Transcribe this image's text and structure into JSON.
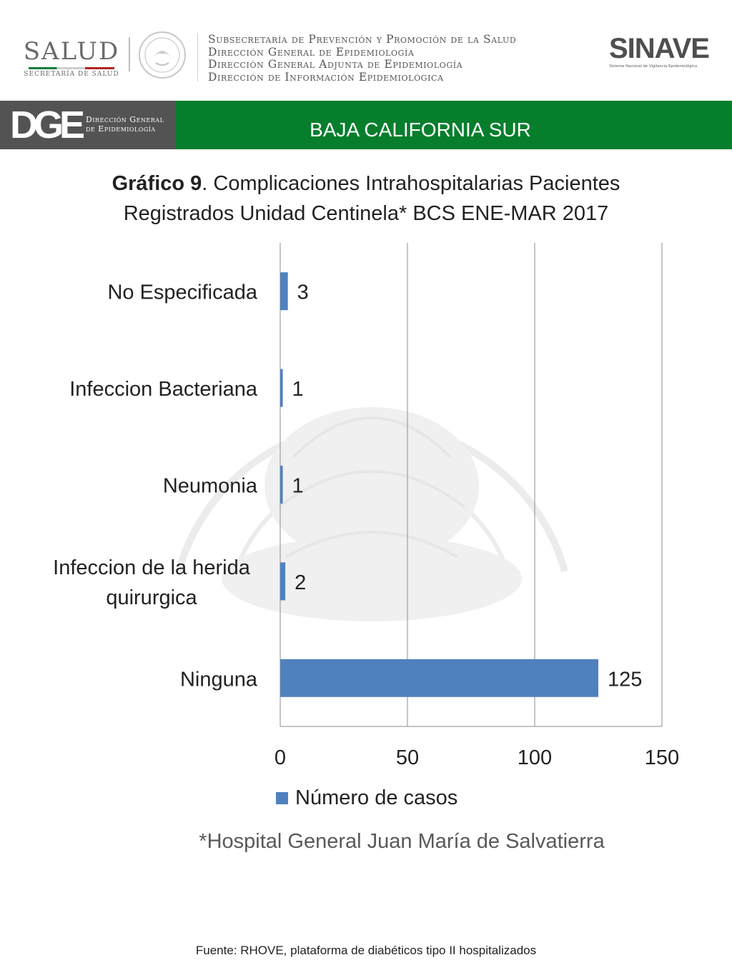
{
  "header": {
    "salud_logo": {
      "word": "SALUD",
      "sub": "SECRETARÍA DE SALUD"
    },
    "lines": [
      "Subsecretaría de Prevención y Promoción de la Salud",
      "Dirección General de Epidemiología",
      "Dirección General Adjunta de Epidemiología",
      "Dirección de Información Epidemiológica"
    ],
    "sinave_logo": {
      "word": "SINAVE",
      "sub": "Sistema Nacional de Vigilancia Epidemiológica"
    }
  },
  "banner": {
    "dge_mark": "DGE",
    "dge_line1": "Dirección General",
    "dge_line2": "de Epidemiología",
    "title": "BAJA CALIFORNIA SUR"
  },
  "title": {
    "prefix": "Gráfico 9",
    "text": ". Complicaciones Intrahospitalarias Pacientes",
    "line2": "Registrados Unidad Centinela* BCS  ENE-MAR 2017"
  },
  "chart_data": {
    "type": "bar",
    "orientation": "horizontal",
    "categories": [
      "No Especificada",
      "Infeccion Bacteriana",
      "Neumonia",
      "Infeccion de la herida quirurgica",
      "Ninguna"
    ],
    "category_lines": [
      [
        "No Especificada"
      ],
      [
        "Infeccion Bacteriana"
      ],
      [
        "Neumonia"
      ],
      [
        "Infeccion de la herida",
        "quirurgica"
      ],
      [
        "Ninguna"
      ]
    ],
    "series": [
      {
        "name": "Número de casos",
        "values": [
          3,
          1,
          1,
          2,
          125
        ]
      }
    ],
    "xlim": [
      0,
      150
    ],
    "xticks": [
      0,
      50,
      100,
      150
    ],
    "grid": true,
    "legend": "bottom",
    "bar_color": "#4f81bd"
  },
  "legend_label": "Número de casos",
  "footnote": "*Hospital General Juan María de Salvatierra",
  "source": "Fuente: RHOVE, plataforma de diabéticos tipo II hospitalizados"
}
